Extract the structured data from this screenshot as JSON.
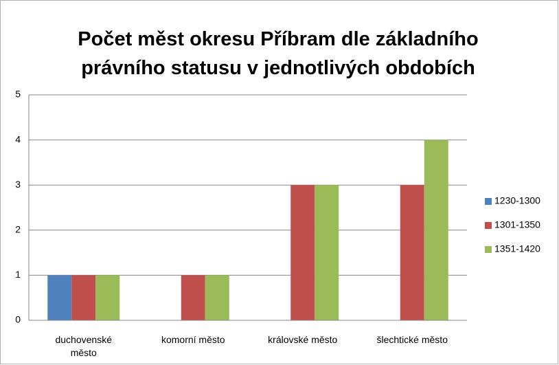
{
  "chart_data": {
    "type": "bar",
    "title": "Počet měst okresu Příbram dle základního právního statusu v jednotlivých obdobích",
    "categories": [
      "duchovenské město",
      "komorní město",
      "královské město",
      "šlechtické město"
    ],
    "series": [
      {
        "name": "1230-1300",
        "color": "#4f81bd",
        "values": [
          1,
          0,
          0,
          0
        ]
      },
      {
        "name": "1301-1350",
        "color": "#c0504d",
        "values": [
          1,
          1,
          3,
          3
        ]
      },
      {
        "name": "1351-1420",
        "color": "#9bbb59",
        "values": [
          1,
          1,
          3,
          4
        ]
      }
    ],
    "ylim": [
      0,
      5
    ],
    "yticks": [
      0,
      1,
      2,
      3,
      4,
      5
    ],
    "grid": true,
    "legend": "right"
  }
}
